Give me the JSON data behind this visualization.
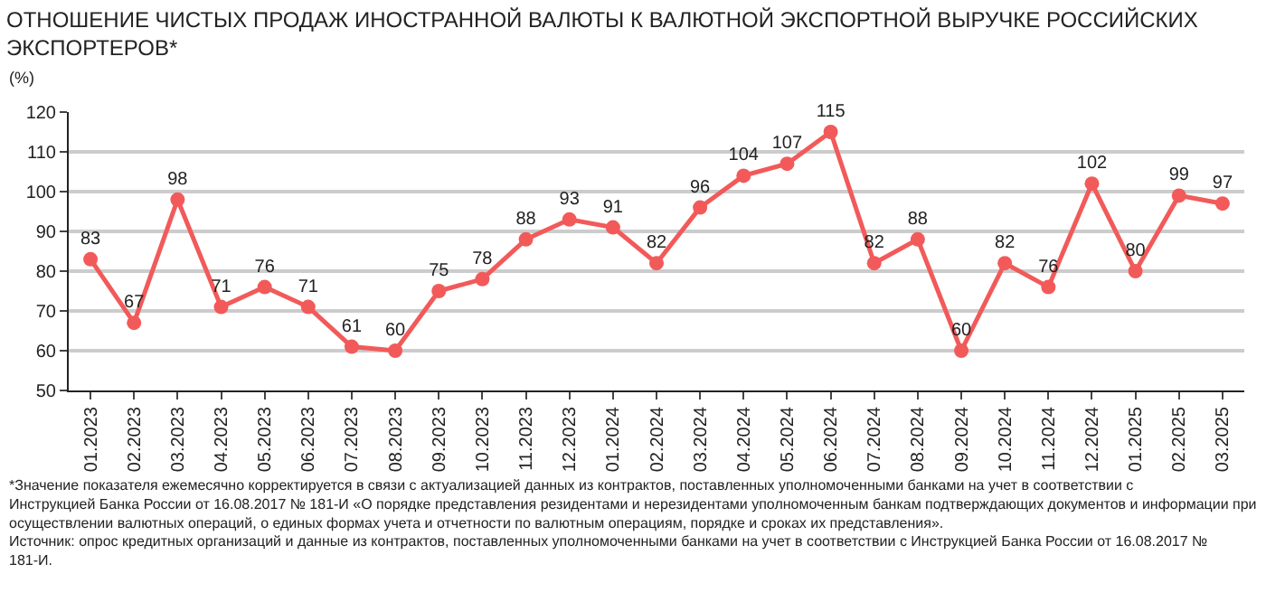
{
  "chart_data": {
    "type": "line",
    "title": "ОТНОШЕНИЕ ЧИСТЫХ ПРОДАЖ ИНОСТРАННОЙ ВАЛЮТЫ К ВАЛЮТНОЙ ЭКСПОРТНОЙ ВЫРУЧКЕ РОССИЙСКИХ ЭКСПОРТЕРОВ*",
    "ylabel": "(%)",
    "categories": [
      "01.2023",
      "02.2023",
      "03.2023",
      "04.2023",
      "05.2023",
      "06.2023",
      "07.2023",
      "08.2023",
      "09.2023",
      "10.2023",
      "11.2023",
      "12.2023",
      "01.2024",
      "02.2024",
      "03.2024",
      "04.2024",
      "05.2024",
      "06.2024",
      "07.2024",
      "08.2024",
      "09.2024",
      "10.2024",
      "11.2024",
      "12.2024",
      "01.2025",
      "02.2025",
      "03.2025"
    ],
    "series": [
      {
        "color": "#f25a5a",
        "values": [
          83,
          67,
          98,
          71,
          76,
          71,
          61,
          60,
          75,
          78,
          88,
          93,
          91,
          82,
          96,
          104,
          107,
          115,
          82,
          88,
          60,
          82,
          76,
          102,
          80,
          99,
          97
        ]
      }
    ],
    "ylim": [
      50,
      120
    ],
    "yticks": [
      50,
      60,
      70,
      80,
      90,
      100,
      110,
      120
    ],
    "grid": "y",
    "marker": "circle",
    "line_style": "solid",
    "data_labels": true,
    "annotations": [
      "*Значение показателя ежемесячно корректируется в связи с актуализацией данных из контрактов, поставленных уполномоченными банками на учет в соответствии с Инструкцией Банка России от 16.08.2017 № 181-И «О порядке представления резидентами и нерезидентами уполномоченным банкам подтверждающих документов и информации при осуществлении валютных операций, о единых формах учета и отчетности по валютным операциям, порядке и сроках их представления».",
      "Источник: опрос кредитных организаций и данные из контрактов, поставленных уполномоченными банками на учет в соответствии с Инструкцией Банка России от 16.08.2017 № 181-И."
    ]
  }
}
